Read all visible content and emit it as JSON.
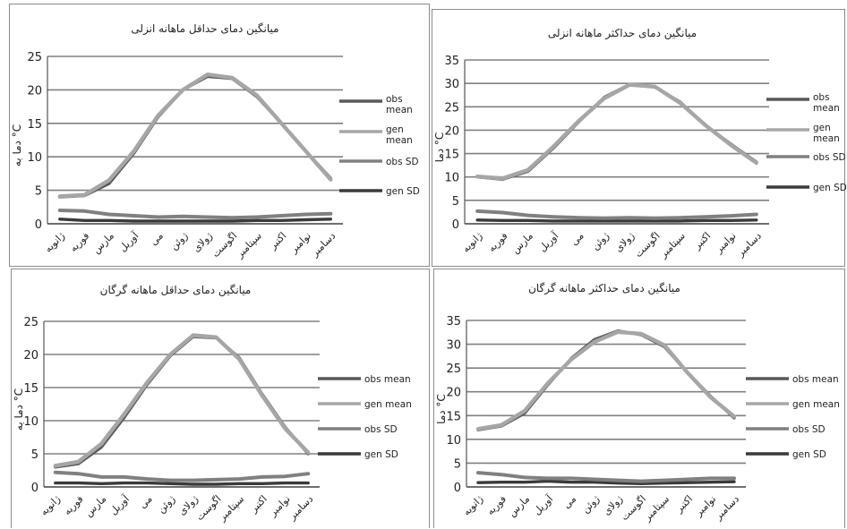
{
  "colors": {
    "obs_mean": "#595959",
    "gen_mean": "#a6a6a6",
    "obs_sd": "#808080",
    "gen_sd": "#3a3a3a",
    "grid": "#808080"
  },
  "chart_data": [
    {
      "type": "line",
      "title": "میانگین دمای حداقل ماهانه انزلی",
      "ylabel": "دما به °C",
      "ylim": [
        0,
        25
      ],
      "yticks": [
        0,
        5,
        10,
        15,
        20,
        25
      ],
      "grid": true,
      "legend_position": "right",
      "categories": [
        "ژانویه",
        "فوریه",
        "مارس",
        "آوریل",
        "می",
        "ژوئن",
        "ژولای",
        "اگوست",
        "سپتامبر",
        "اکتبر",
        "نوامبر",
        "دسامبر"
      ],
      "series": [
        {
          "name": "obs mean",
          "color_key": "obs_mean",
          "values": [
            4.0,
            4.2,
            6.0,
            10.5,
            16.0,
            20.0,
            22.0,
            21.7,
            19.0,
            15.0,
            10.8,
            6.8
          ]
        },
        {
          "name": "gen mean",
          "color_key": "gen_mean",
          "values": [
            4.1,
            4.3,
            6.5,
            10.8,
            16.2,
            20.0,
            22.3,
            21.8,
            19.2,
            15.0,
            10.8,
            6.6
          ]
        },
        {
          "name": "obs SD",
          "color_key": "obs_sd",
          "values": [
            2.0,
            1.9,
            1.4,
            1.2,
            1.0,
            1.1,
            1.0,
            0.9,
            1.0,
            1.2,
            1.4,
            1.5
          ]
        },
        {
          "name": "gen SD",
          "color_key": "gen_sd",
          "values": [
            0.7,
            0.5,
            0.5,
            0.4,
            0.4,
            0.4,
            0.4,
            0.4,
            0.5,
            0.5,
            0.6,
            0.7
          ]
        }
      ]
    },
    {
      "type": "line",
      "title": "میانگین دمای حداکثر ماهانه انزلی",
      "ylabel": "دما °C",
      "ylim": [
        0,
        35
      ],
      "yticks": [
        0,
        5,
        10,
        15,
        20,
        25,
        30,
        35
      ],
      "grid": true,
      "legend_position": "right",
      "categories": [
        "ژانویه",
        "فوریه",
        "مارس",
        "آوریل",
        "می",
        "ژوئن",
        "ژولای",
        "اگوست",
        "سپتامبر",
        "اکتبر",
        "نوامبر",
        "دسامبر"
      ],
      "series": [
        {
          "name": "obs mean",
          "color_key": "obs_mean",
          "values": [
            10.0,
            9.5,
            11.2,
            16.2,
            21.8,
            27.0,
            29.8,
            29.2,
            26.0,
            21.0,
            17.0,
            13.2
          ]
        },
        {
          "name": "gen mean",
          "color_key": "gen_mean",
          "values": [
            10.1,
            9.7,
            11.5,
            16.5,
            22.0,
            26.8,
            29.7,
            29.3,
            25.8,
            21.0,
            16.8,
            13.0
          ]
        },
        {
          "name": "obs SD",
          "color_key": "obs_sd",
          "values": [
            2.7,
            2.4,
            1.8,
            1.5,
            1.3,
            1.2,
            1.3,
            1.2,
            1.3,
            1.5,
            1.7,
            2.0
          ]
        },
        {
          "name": "gen SD",
          "color_key": "gen_sd",
          "values": [
            0.8,
            0.7,
            0.7,
            0.6,
            0.6,
            0.6,
            0.6,
            0.6,
            0.6,
            0.7,
            0.7,
            0.8
          ]
        }
      ]
    },
    {
      "type": "line",
      "title": "میانگین دمای حداقل ماهانه گرگان",
      "ylabel": "دما به °C",
      "ylim": [
        0,
        25
      ],
      "yticks": [
        0,
        5,
        10,
        15,
        20,
        25
      ],
      "grid": true,
      "legend_position": "right",
      "categories": [
        "ژانویه",
        "فوریه",
        "مارس",
        "آوریل",
        "می",
        "ژوئن",
        "ژولای",
        "اگوست",
        "سپتامبر",
        "اکتبر",
        "نوامبر",
        "دسامبر"
      ],
      "series": [
        {
          "name": "obs mean",
          "color_key": "obs_mean",
          "values": [
            3.0,
            3.5,
            6.0,
            10.5,
            15.5,
            19.8,
            22.7,
            22.5,
            19.5,
            14.0,
            9.0,
            5.0
          ]
        },
        {
          "name": "gen mean",
          "color_key": "gen_mean",
          "values": [
            3.2,
            3.8,
            6.5,
            11.0,
            15.8,
            20.0,
            22.9,
            22.6,
            19.3,
            13.8,
            8.8,
            5.2
          ]
        },
        {
          "name": "obs SD",
          "color_key": "obs_sd",
          "values": [
            2.2,
            2.0,
            1.5,
            1.5,
            1.2,
            1.0,
            1.0,
            1.1,
            1.2,
            1.5,
            1.6,
            2.0
          ]
        },
        {
          "name": "gen SD",
          "color_key": "gen_sd",
          "values": [
            0.6,
            0.6,
            0.5,
            0.6,
            0.6,
            0.5,
            0.4,
            0.4,
            0.5,
            0.5,
            0.6,
            0.6
          ]
        }
      ]
    },
    {
      "type": "line",
      "title": "میانگین دمای حداکثر ماهانه گرگان",
      "ylabel": "دما °C",
      "ylim": [
        0,
        35
      ],
      "yticks": [
        0,
        5,
        10,
        15,
        20,
        25,
        30,
        35
      ],
      "grid": true,
      "legend_position": "right",
      "categories": [
        "ژانویه",
        "فوریه",
        "مارس",
        "آوریل",
        "می",
        "ژوئن",
        "ژولای",
        "اگوست",
        "سپتامبر",
        "اکتبر",
        "نوامبر",
        "دسامبر"
      ],
      "series": [
        {
          "name": "obs mean",
          "color_key": "obs_mean",
          "values": [
            12.0,
            12.8,
            15.5,
            21.5,
            27.0,
            31.0,
            32.8,
            32.0,
            29.5,
            24.0,
            19.0,
            14.5
          ]
        },
        {
          "name": "gen mean",
          "color_key": "gen_mean",
          "values": [
            12.2,
            13.0,
            16.0,
            21.8,
            26.8,
            30.5,
            32.6,
            32.2,
            29.8,
            24.0,
            18.8,
            14.8
          ]
        },
        {
          "name": "obs SD",
          "color_key": "obs_sd",
          "values": [
            3.0,
            2.6,
            2.0,
            1.8,
            1.8,
            1.6,
            1.4,
            1.2,
            1.4,
            1.6,
            1.8,
            1.8
          ]
        },
        {
          "name": "gen SD",
          "color_key": "gen_sd",
          "values": [
            0.9,
            1.0,
            1.0,
            1.2,
            1.0,
            1.0,
            0.8,
            0.7,
            0.8,
            0.9,
            1.0,
            1.1
          ]
        }
      ]
    }
  ]
}
